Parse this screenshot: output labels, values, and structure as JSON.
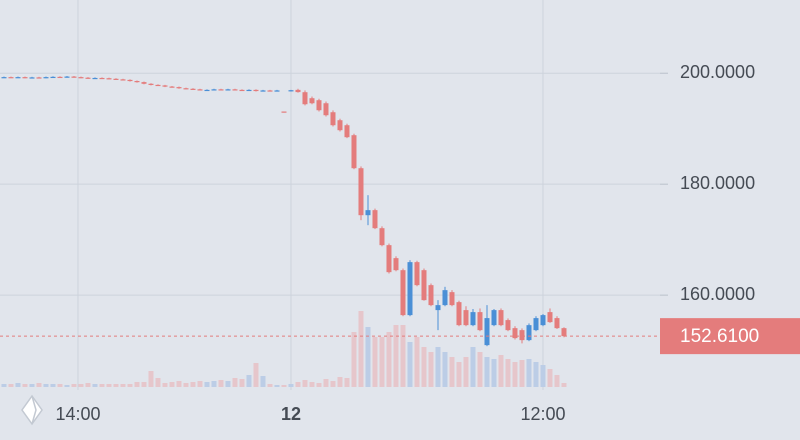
{
  "chart_data": {
    "type": "candlestick",
    "up_color": "#4a8fd6",
    "down_color": "#e47c7c",
    "up_volume_color": "#bccde6",
    "down_volume_color": "#e6c6cb",
    "grid": true,
    "xlim": [
      -0.57,
      93.43
    ],
    "ylim": [
      142.9,
      213.2
    ],
    "volume_lim": [
      0,
      80
    ],
    "xticks": [
      {
        "value": 10.57,
        "label": "14:00"
      },
      {
        "value": 41,
        "label": "12"
      },
      {
        "value": 77,
        "label": "12:00"
      }
    ],
    "yticks": [
      {
        "value": 200,
        "label": "200.0000"
      },
      {
        "value": 180,
        "label": "180.0000"
      },
      {
        "value": 160,
        "label": "160.0000"
      }
    ],
    "last_price": {
      "value": 152.61,
      "label": "152.6100"
    },
    "open": [
      199.25,
      199.3,
      199.25,
      199.3,
      199.2,
      199.25,
      199.2,
      199.3,
      199.35,
      199.3,
      199.4,
      199.3,
      199.2,
      199.1,
      199.15,
      199.1,
      199.0,
      198.9,
      198.8,
      198.6,
      198.4,
      198.1,
      197.9,
      197.8,
      197.6,
      197.5,
      197.3,
      197.2,
      197.1,
      197.0,
      197.0,
      197.1,
      197.0,
      197.1,
      197.0,
      196.9,
      197.0,
      196.8,
      196.9,
      196.8,
      193.1,
      196.8,
      197.0,
      196.58,
      195.5,
      195.14,
      194.59,
      192.97,
      191.53,
      190.63,
      188.83,
      182.88,
      174.41,
      175.32,
      172.07,
      169.01,
      166.67,
      164.5,
      156.4,
      165.95,
      164.5,
      161.8,
      157.3,
      158.2,
      160.54,
      158.74,
      157.3,
      154.59,
      156.94,
      150.99,
      154.59,
      157.3,
      155.5,
      154.05,
      153.69,
      151.89,
      153.69,
      154.59,
      156.94,
      155.86,
      154.05
    ],
    "high": [
      199.4,
      199.4,
      199.4,
      199.4,
      199.35,
      199.35,
      199.4,
      199.45,
      199.45,
      199.5,
      199.5,
      199.4,
      199.3,
      199.25,
      199.25,
      199.2,
      199.1,
      199.0,
      198.9,
      198.7,
      198.5,
      198.2,
      198.0,
      197.9,
      197.7,
      197.6,
      197.4,
      197.3,
      197.2,
      197.1,
      197.2,
      197.2,
      197.2,
      197.2,
      197.1,
      197.1,
      197.1,
      197.0,
      197.0,
      197.0,
      193.1,
      197.0,
      197.2,
      196.9,
      195.8,
      195.4,
      194.9,
      193.3,
      191.8,
      190.9,
      189.1,
      183.2,
      178.02,
      175.6,
      172.4,
      169.3,
      167.0,
      164.8,
      166.3,
      166.2,
      164.8,
      162.1,
      159.1,
      161.5,
      160.9,
      159.0,
      158.0,
      157.5,
      157.6,
      158.2,
      157.5,
      157.6,
      155.8,
      154.4,
      154.0,
      154.9,
      156.2,
      156.6,
      157.6,
      156.2,
      154.2
    ],
    "low": [
      199.15,
      199.15,
      199.15,
      199.1,
      199.1,
      199.1,
      199.1,
      199.2,
      199.2,
      199.2,
      199.2,
      199.1,
      199.0,
      199.0,
      199.0,
      198.9,
      198.8,
      198.7,
      198.5,
      198.3,
      198.0,
      197.8,
      197.7,
      197.5,
      197.4,
      197.2,
      197.1,
      197.0,
      196.9,
      196.9,
      196.9,
      196.9,
      196.9,
      196.9,
      196.8,
      196.8,
      196.7,
      196.7,
      196.7,
      196.7,
      192.9,
      196.7,
      196.5,
      194.2,
      194.4,
      193.1,
      192.2,
      190.4,
      189.5,
      188.3,
      182.7,
      173.51,
      172.61,
      171.9,
      168.8,
      163.9,
      164.3,
      156.2,
      156.2,
      161.6,
      159.0,
      158.0,
      153.69,
      158.0,
      158.0,
      154.4,
      154.4,
      154.4,
      153.5,
      150.8,
      154.4,
      154.4,
      153.5,
      152.0,
      151.3,
      151.7,
      153.5,
      154.4,
      155.0,
      153.9,
      152.4
    ],
    "close": [
      199.3,
      199.25,
      199.3,
      199.2,
      199.25,
      199.2,
      199.3,
      199.35,
      199.3,
      199.4,
      199.3,
      199.2,
      199.1,
      199.15,
      199.1,
      199.0,
      198.9,
      198.8,
      198.6,
      198.4,
      198.1,
      197.9,
      197.8,
      197.6,
      197.5,
      197.3,
      197.2,
      197.1,
      197.0,
      197.0,
      197.1,
      197.0,
      197.1,
      197.0,
      196.9,
      197.0,
      196.8,
      196.9,
      196.8,
      196.9,
      192.97,
      196.94,
      196.6,
      194.41,
      194.59,
      193.33,
      192.43,
      190.63,
      189.73,
      188.47,
      182.88,
      174.41,
      175.32,
      172.07,
      169.01,
      164.14,
      164.5,
      156.4,
      165.95,
      161.8,
      159.1,
      158.2,
      158.2,
      160.9,
      158.2,
      154.59,
      154.59,
      156.94,
      153.69,
      155.86,
      157.3,
      154.59,
      153.69,
      152.25,
      151.89,
      154.59,
      155.86,
      156.4,
      155.14,
      154.05,
      152.61
    ],
    "volume": [
      3,
      3,
      4,
      3,
      3,
      4,
      3,
      3,
      3,
      2,
      3,
      3,
      4,
      3,
      3,
      3,
      3,
      3,
      3,
      5,
      5,
      16,
      9,
      4,
      5,
      6,
      4,
      5,
      6,
      5,
      6,
      7,
      6,
      9,
      8,
      12,
      24,
      11,
      3,
      2,
      2,
      3,
      5,
      7,
      5,
      4,
      8,
      6,
      10,
      9,
      55,
      76,
      60,
      50,
      50,
      55,
      62,
      62,
      45,
      50,
      40,
      35,
      40,
      35,
      30,
      25,
      30,
      40,
      35,
      30,
      28,
      32,
      28,
      25,
      27,
      28,
      25,
      22,
      18,
      12,
      4
    ]
  }
}
